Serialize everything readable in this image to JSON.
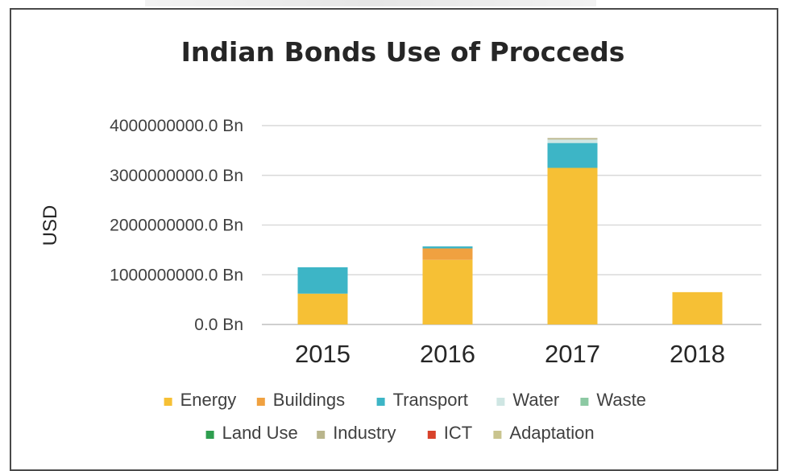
{
  "chart_data": {
    "type": "bar",
    "stacked": true,
    "title": "Indian Bonds Use of Procceds",
    "xlabel": "",
    "ylabel": "USD",
    "categories": [
      "2015",
      "2016",
      "2017",
      "2018"
    ],
    "y_ticks": [
      "0.0 Bn",
      "1000000000.0 Bn",
      "2000000000.0 Bn",
      "3000000000.0 Bn",
      "4000000000.0 Bn"
    ],
    "ylim": [
      0,
      4000000000
    ],
    "grid": true,
    "legend_position": "bottom",
    "series": [
      {
        "name": "Energy",
        "color": "#F6C035",
        "values": [
          620000000,
          1300000000,
          3150000000,
          650000000
        ]
      },
      {
        "name": "Buildings",
        "color": "#F0A140",
        "values": [
          0,
          230000000,
          0,
          0
        ]
      },
      {
        "name": "Transport",
        "color": "#3DB5C6",
        "values": [
          530000000,
          40000000,
          500000000,
          0
        ]
      },
      {
        "name": "Water",
        "color": "#CFE6E3",
        "values": [
          0,
          0,
          70000000,
          0
        ]
      },
      {
        "name": "Waste",
        "color": "#8CC9A3",
        "values": [
          0,
          0,
          0,
          0
        ]
      },
      {
        "name": "Land Use",
        "color": "#2E9E4F",
        "values": [
          0,
          0,
          0,
          0
        ]
      },
      {
        "name": "Industry",
        "color": "#B9B58C",
        "values": [
          0,
          0,
          30000000,
          0
        ]
      },
      {
        "name": "ICT",
        "color": "#D8422B",
        "values": [
          0,
          0,
          0,
          0
        ]
      },
      {
        "name": "Adaptation",
        "color": "#C9C48E",
        "values": [
          0,
          0,
          0,
          0
        ]
      }
    ]
  }
}
